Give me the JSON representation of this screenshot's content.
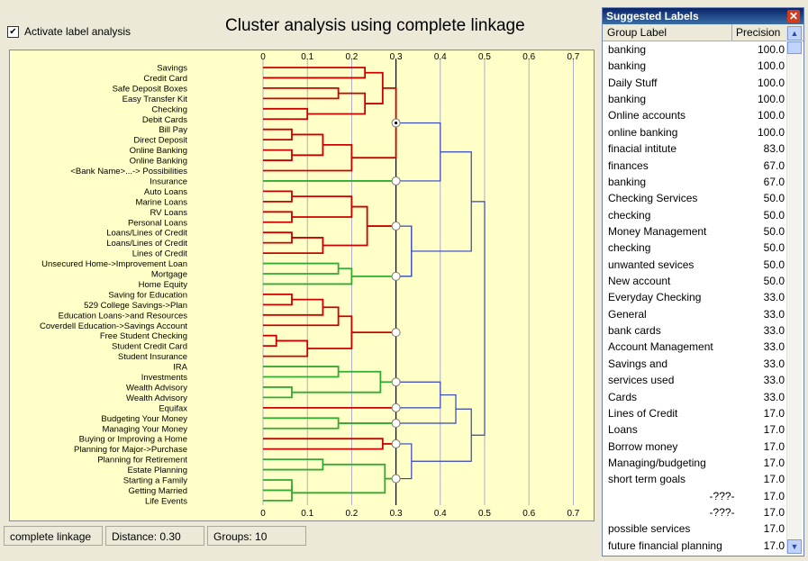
{
  "main": {
    "checkbox_label": "Activate label analysis",
    "checkbox_checked": true,
    "title": "Cluster analysis using complete linkage",
    "axis_ticks": [
      "0",
      "0.1",
      "0.2",
      "0.3",
      "0.4",
      "0.5",
      "0.6",
      "0.7"
    ]
  },
  "status": {
    "linkage": "complete linkage",
    "distance": "Distance: 0.30",
    "groups": "Groups: 10"
  },
  "chart_data": {
    "type": "dendrogram",
    "title": "Cluster analysis using complete linkage",
    "xlim": [
      0,
      0.7
    ],
    "cut_distance": 0.3,
    "leaves": [
      "Savings",
      "Credit Card",
      "Safe Deposit Boxes",
      "Easy Transfer Kit",
      "Checking",
      "Debit Cards",
      "Bill Pay",
      "Direct Deposit",
      "Online Banking",
      "Online Banking",
      "<Bank Name>...-> Possibilities",
      "Insurance",
      "Auto Loans",
      "Marine Loans",
      "RV Loans",
      "Personal Loans",
      "Loans/Lines of Credit",
      "Loans/Lines of Credit",
      "Lines of Credit",
      "Unsecured Home->Improvement Loan",
      "Mortgage",
      "Home Equity",
      "Saving for Education",
      "529 College Savings->Plan",
      "Education Loans->and Resources",
      "Coverdell Education->Savings Account",
      "Free Student Checking",
      "Student Credit Card",
      "Student Insurance",
      "IRA",
      "Investments",
      "Wealth Advisory",
      "Wealth Advisory",
      "Equifax",
      "Budgeting Your Money",
      "Managing Your Money",
      "Buying or Improving a Home",
      "Planning for Major->Purchase",
      "Planning for Retirement",
      "Estate Planning",
      "Starting a Family",
      "Getting Married",
      "Life Events"
    ],
    "colors": {
      "within_cut_red": "#cc0000",
      "within_cut_green": "#33aa33",
      "above_cut": "#3344bb",
      "background": "#ffffc8"
    }
  },
  "side": {
    "title": "Suggested Labels",
    "col_label": "Group Label",
    "col_prec": "Precision",
    "rows": [
      {
        "label": "banking",
        "value": "100.0"
      },
      {
        "label": "banking",
        "value": "100.0"
      },
      {
        "label": "Daily Stuff",
        "value": "100.0"
      },
      {
        "label": "banking",
        "value": "100.0"
      },
      {
        "label": "Online accounts",
        "value": "100.0"
      },
      {
        "label": "online banking",
        "value": "100.0"
      },
      {
        "label": "finacial intitute",
        "value": "83.0"
      },
      {
        "label": "finances",
        "value": "67.0"
      },
      {
        "label": "banking",
        "value": "67.0"
      },
      {
        "label": "Checking Services",
        "value": "50.0"
      },
      {
        "label": "checking",
        "value": "50.0"
      },
      {
        "label": "Money Management",
        "value": "50.0"
      },
      {
        "label": "checking",
        "value": "50.0"
      },
      {
        "label": "unwanted sevices",
        "value": "50.0"
      },
      {
        "label": "New account",
        "value": "50.0"
      },
      {
        "label": "Everyday Checking",
        "value": "33.0"
      },
      {
        "label": "General",
        "value": "33.0"
      },
      {
        "label": "bank cards",
        "value": "33.0"
      },
      {
        "label": "Account Management",
        "value": "33.0"
      },
      {
        "label": "Savings and",
        "value": "33.0"
      },
      {
        "label": "services used",
        "value": "33.0"
      },
      {
        "label": "Cards",
        "value": "33.0"
      },
      {
        "label": "Lines of Credit",
        "value": "17.0"
      },
      {
        "label": "Loans",
        "value": "17.0"
      },
      {
        "label": "Borrow money",
        "value": "17.0"
      },
      {
        "label": "Managing/budgeting",
        "value": "17.0"
      },
      {
        "label": "short term goals",
        "value": "17.0"
      },
      {
        "label": "-???-",
        "value": "17.0"
      },
      {
        "label": "-???-",
        "value": "17.0"
      },
      {
        "label": "possible services",
        "value": "17.0"
      },
      {
        "label": "future financial planning",
        "value": "17.0"
      }
    ]
  }
}
